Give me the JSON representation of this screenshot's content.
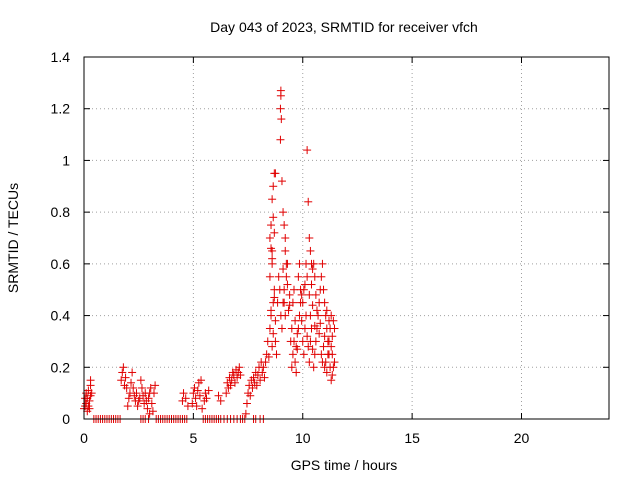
{
  "chart_data": {
    "type": "scatter",
    "title": "Day 043 of 2023, SRMTID for receiver vfch",
    "xlabel": "GPS time / hours",
    "ylabel": "SRMTID / TECUs",
    "xlim": [
      0,
      24
    ],
    "ylim": [
      0,
      1.4
    ],
    "xticks": [
      0,
      5,
      10,
      15,
      20
    ],
    "xtick_labels": [
      "0",
      "5",
      "10",
      "15",
      "20"
    ],
    "yticks": [
      0,
      0.2,
      0.4,
      0.6,
      0.8,
      1,
      1.2,
      1.4
    ],
    "ytick_labels": [
      "0",
      "0.2",
      "0.4",
      "0.6",
      "0.8",
      "1",
      "1.2",
      "1.4"
    ],
    "grid": true,
    "marker": "plus",
    "color": "#e00000",
    "series": [
      {
        "name": "SRMTID",
        "points": [
          [
            0.0,
            0.04
          ],
          [
            0.05,
            0.05
          ],
          [
            0.05,
            0.08
          ],
          [
            0.1,
            0.1
          ],
          [
            0.1,
            0.06
          ],
          [
            0.15,
            0.03
          ],
          [
            0.15,
            0.08
          ],
          [
            0.2,
            0.05
          ],
          [
            0.2,
            0.11
          ],
          [
            0.25,
            0.07
          ],
          [
            0.25,
            0.04
          ],
          [
            0.3,
            0.09
          ],
          [
            0.3,
            0.13
          ],
          [
            0.3,
            0.15
          ],
          [
            0.35,
            0.1
          ],
          [
            0.45,
            0
          ],
          [
            0.55,
            0
          ],
          [
            0.65,
            0
          ],
          [
            0.75,
            0
          ],
          [
            0.85,
            0
          ],
          [
            0.95,
            0
          ],
          [
            1.05,
            0
          ],
          [
            1.15,
            0
          ],
          [
            1.25,
            0
          ],
          [
            1.35,
            0
          ],
          [
            1.45,
            0
          ],
          [
            1.55,
            0
          ],
          [
            1.65,
            0
          ],
          [
            1.7,
            0.15
          ],
          [
            1.75,
            0.18
          ],
          [
            1.8,
            0.2
          ],
          [
            1.85,
            0.13
          ],
          [
            1.9,
            0.16
          ],
          [
            1.95,
            0.12
          ],
          [
            2.0,
            0.05
          ],
          [
            2.05,
            0.08
          ],
          [
            2.1,
            0.1
          ],
          [
            2.15,
            0.14
          ],
          [
            2.2,
            0.18
          ],
          [
            2.25,
            0.12
          ],
          [
            2.3,
            0.09
          ],
          [
            2.35,
            0.07
          ],
          [
            2.4,
            0.1
          ],
          [
            2.45,
            0.05
          ],
          [
            2.5,
            0.07
          ],
          [
            2.55,
            0.08
          ],
          [
            2.6,
            0.15
          ],
          [
            2.65,
            0.12
          ],
          [
            2.7,
            0.09
          ],
          [
            2.75,
            0.06
          ],
          [
            2.8,
            0.1
          ],
          [
            2.85,
            0.07
          ],
          [
            2.9,
            0.04
          ],
          [
            2.95,
            0.08
          ],
          [
            3.0,
            0.1
          ],
          [
            3.05,
            0.12
          ],
          [
            3.1,
            0.06
          ],
          [
            3.15,
            0.03
          ],
          [
            3.2,
            0.1
          ],
          [
            3.25,
            0.13
          ],
          [
            2.6,
            0
          ],
          [
            2.7,
            0
          ],
          [
            2.8,
            0
          ],
          [
            2.95,
            0
          ],
          [
            3.0,
            0.02
          ],
          [
            3.3,
            0
          ],
          [
            3.4,
            0
          ],
          [
            3.5,
            0
          ],
          [
            3.6,
            0
          ],
          [
            3.7,
            0
          ],
          [
            3.8,
            0
          ],
          [
            3.9,
            0
          ],
          [
            4.0,
            0
          ],
          [
            4.1,
            0
          ],
          [
            4.2,
            0
          ],
          [
            4.3,
            0
          ],
          [
            4.4,
            0
          ],
          [
            4.5,
            0
          ],
          [
            4.6,
            0
          ],
          [
            4.7,
            0
          ],
          [
            4.5,
            0.07
          ],
          [
            4.55,
            0.1
          ],
          [
            4.65,
            0.08
          ],
          [
            4.75,
            0.05
          ],
          [
            4.95,
            0.06
          ],
          [
            5.0,
            0.1
          ],
          [
            5.05,
            0.12
          ],
          [
            5.1,
            0.08
          ],
          [
            5.15,
            0.05
          ],
          [
            5.2,
            0.11
          ],
          [
            5.25,
            0.14
          ],
          [
            5.3,
            0.09
          ],
          [
            5.35,
            0.15
          ],
          [
            5.4,
            0.04
          ],
          [
            5.45,
            0
          ],
          [
            5.55,
            0
          ],
          [
            5.65,
            0
          ],
          [
            5.75,
            0
          ],
          [
            5.85,
            0
          ],
          [
            5.95,
            0
          ],
          [
            6.05,
            0
          ],
          [
            6.15,
            0
          ],
          [
            6.25,
            0
          ],
          [
            6.4,
            0
          ],
          [
            6.55,
            0
          ],
          [
            6.7,
            0
          ],
          [
            6.85,
            0
          ],
          [
            7.0,
            0
          ],
          [
            7.15,
            0
          ],
          [
            7.25,
            0
          ],
          [
            7.35,
            0
          ],
          [
            5.5,
            0.07
          ],
          [
            5.55,
            0.1
          ],
          [
            5.6,
            0.08
          ],
          [
            5.7,
            0.11
          ],
          [
            6.15,
            0.09
          ],
          [
            6.25,
            0.07
          ],
          [
            6.5,
            0.1
          ],
          [
            6.55,
            0.14
          ],
          [
            6.6,
            0.12
          ],
          [
            6.65,
            0.16
          ],
          [
            6.7,
            0.13
          ],
          [
            6.75,
            0.15
          ],
          [
            6.8,
            0.18
          ],
          [
            6.85,
            0.17
          ],
          [
            6.9,
            0.14
          ],
          [
            6.95,
            0.19
          ],
          [
            7.0,
            0.16
          ],
          [
            7.05,
            0.18
          ],
          [
            7.1,
            0.2
          ],
          [
            7.15,
            0.17
          ],
          [
            7.4,
            0.02
          ],
          [
            7.45,
            0.06
          ],
          [
            7.5,
            0.1
          ],
          [
            7.55,
            0.13
          ],
          [
            7.6,
            0.09
          ],
          [
            7.65,
            0.15
          ],
          [
            7.7,
            0.12
          ],
          [
            7.75,
            0.16
          ],
          [
            7.8,
            0.14
          ],
          [
            7.85,
            0.18
          ],
          [
            7.9,
            0.13
          ],
          [
            7.95,
            0.17
          ],
          [
            8.0,
            0.2
          ],
          [
            8.05,
            0.15
          ],
          [
            8.1,
            0.22
          ],
          [
            8.15,
            0.18
          ],
          [
            8.2,
            0.2
          ],
          [
            8.25,
            0.16
          ],
          [
            7.75,
            0
          ],
          [
            7.85,
            0
          ],
          [
            8.05,
            0
          ],
          [
            8.2,
            0
          ],
          [
            8.3,
            0.22
          ],
          [
            8.35,
            0.25
          ],
          [
            8.4,
            0.3
          ],
          [
            8.45,
            0.24
          ],
          [
            8.5,
            0.35
          ],
          [
            8.55,
            0.4
          ],
          [
            8.6,
            0.28
          ],
          [
            8.65,
            0.45
          ],
          [
            8.7,
            0.5
          ],
          [
            8.75,
            0.38
          ],
          [
            8.5,
            0.55
          ],
          [
            8.55,
            0.42
          ],
          [
            8.6,
            0.6
          ],
          [
            8.65,
            0.33
          ],
          [
            8.7,
            0.47
          ],
          [
            8.5,
            0.7
          ],
          [
            8.55,
            0.75
          ],
          [
            8.6,
            0.65
          ],
          [
            8.65,
            0.78
          ],
          [
            8.7,
            0.72
          ],
          [
            8.6,
            0.85
          ],
          [
            8.65,
            0.9
          ],
          [
            8.7,
            0.95
          ],
          [
            8.75,
            0.95
          ],
          [
            8.55,
            0.66
          ],
          [
            8.6,
            0.62
          ],
          [
            8.75,
            0.3
          ],
          [
            8.8,
            0.25
          ],
          [
            8.85,
            0.45
          ],
          [
            8.9,
            0.55
          ],
          [
            8.95,
            0.5
          ],
          [
            9.0,
            1.27
          ],
          [
            9.0,
            1.25
          ],
          [
            8.98,
            1.2
          ],
          [
            9.02,
            1.16
          ],
          [
            8.98,
            1.08
          ],
          [
            9.05,
            0.92
          ],
          [
            9.1,
            0.8
          ],
          [
            9.15,
            0.75
          ],
          [
            9.2,
            0.7
          ],
          [
            9.0,
            0.4
          ],
          [
            9.05,
            0.35
          ],
          [
            9.1,
            0.45
          ],
          [
            9.15,
            0.5
          ],
          [
            9.2,
            0.4
          ],
          [
            9.25,
            0.55
          ],
          [
            9.3,
            0.6
          ],
          [
            9.35,
            0.42
          ],
          [
            9.4,
            0.48
          ],
          [
            9.45,
            0.3
          ],
          [
            9.5,
            0.35
          ],
          [
            9.55,
            0.45
          ],
          [
            9.6,
            0.5
          ],
          [
            9.65,
            0.38
          ],
          [
            9.7,
            0.28
          ],
          [
            9.75,
            0.33
          ],
          [
            9.2,
            0.65
          ],
          [
            9.25,
            0.6
          ],
          [
            9.3,
            0.52
          ],
          [
            9.1,
            0.58
          ],
          [
            9.15,
            0.45
          ],
          [
            9.4,
            0.44
          ],
          [
            9.5,
            0.2
          ],
          [
            9.55,
            0.25
          ],
          [
            9.6,
            0.3
          ],
          [
            9.65,
            0.22
          ],
          [
            9.7,
            0.18
          ],
          [
            9.75,
            0.27
          ],
          [
            9.8,
            0.35
          ],
          [
            9.85,
            0.4
          ],
          [
            9.9,
            0.45
          ],
          [
            9.95,
            0.38
          ],
          [
            9.8,
            0.55
          ],
          [
            9.85,
            0.6
          ],
          [
            9.9,
            0.5
          ],
          [
            9.95,
            0.48
          ],
          [
            10.0,
            0.45
          ],
          [
            10.05,
            0.5
          ],
          [
            10.1,
            0.52
          ],
          [
            10.15,
            0.6
          ],
          [
            10.2,
            0.55
          ],
          [
            10.2,
            1.04
          ],
          [
            10.25,
            0.84
          ],
          [
            10.3,
            0.7
          ],
          [
            10.35,
            0.65
          ],
          [
            10.4,
            0.6
          ],
          [
            10.45,
            0.58
          ],
          [
            10.3,
            0.48
          ],
          [
            10.35,
            0.4
          ],
          [
            10.4,
            0.52
          ],
          [
            10.45,
            0.44
          ],
          [
            10.0,
            0.3
          ],
          [
            10.05,
            0.25
          ],
          [
            10.1,
            0.35
          ],
          [
            10.15,
            0.4
          ],
          [
            10.2,
            0.32
          ],
          [
            10.25,
            0.28
          ],
          [
            10.3,
            0.22
          ],
          [
            10.35,
            0.3
          ],
          [
            10.4,
            0.35
          ],
          [
            10.45,
            0.27
          ],
          [
            10.5,
            0.2
          ],
          [
            10.55,
            0.25
          ],
          [
            10.6,
            0.3
          ],
          [
            10.65,
            0.35
          ],
          [
            10.7,
            0.4
          ],
          [
            10.75,
            0.45
          ],
          [
            10.8,
            0.5
          ],
          [
            10.85,
            0.55
          ],
          [
            10.9,
            0.6
          ],
          [
            10.95,
            0.5
          ],
          [
            10.5,
            0.6
          ],
          [
            10.55,
            0.55
          ],
          [
            10.6,
            0.48
          ],
          [
            10.65,
            0.42
          ],
          [
            10.55,
            0.36
          ],
          [
            11.0,
            0.45
          ],
          [
            11.05,
            0.4
          ],
          [
            11.1,
            0.35
          ],
          [
            11.15,
            0.3
          ],
          [
            11.2,
            0.25
          ],
          [
            11.25,
            0.2
          ],
          [
            11.3,
            0.28
          ],
          [
            11.35,
            0.32
          ],
          [
            11.4,
            0.38
          ],
          [
            11.45,
            0.35
          ],
          [
            11.0,
            0.2
          ],
          [
            11.05,
            0.22
          ],
          [
            11.1,
            0.18
          ],
          [
            11.15,
            0.25
          ],
          [
            11.2,
            0.3
          ],
          [
            11.25,
            0.35
          ],
          [
            11.3,
            0.4
          ],
          [
            11.35,
            0.25
          ],
          [
            11.4,
            0.2
          ],
          [
            11.45,
            0.22
          ],
          [
            11.3,
            0.15
          ],
          [
            11.35,
            0.17
          ],
          [
            10.85,
            0.25
          ],
          [
            10.9,
            0.22
          ],
          [
            10.95,
            0.28
          ],
          [
            10.75,
            0.33
          ],
          [
            10.8,
            0.37
          ],
          [
            11.0,
            0.32
          ],
          [
            11.1,
            0.42
          ],
          [
            11.2,
            0.38
          ]
        ]
      }
    ]
  }
}
